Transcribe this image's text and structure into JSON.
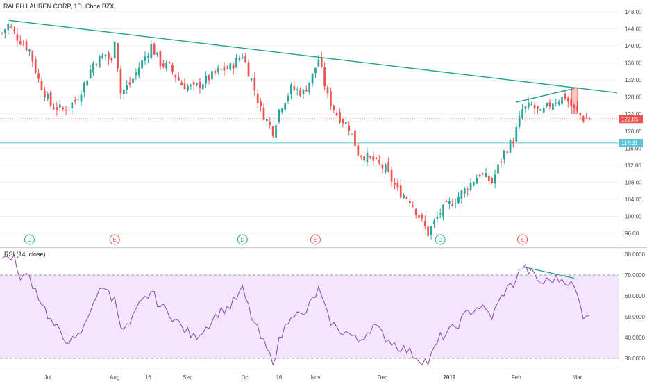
{
  "chart_data": [
    {
      "type": "candlestick",
      "title": "RALPH LAUREN CORP, 1D, Cboe BZX",
      "ylim": [
        94,
        150
      ],
      "y_ticks": [
        "148.00",
        "144.00",
        "140.00",
        "136.00",
        "132.00",
        "128.00",
        "124.00",
        "120.00",
        "116.00",
        "112.00",
        "108.00",
        "104.00",
        "100.00",
        "96.00"
      ],
      "x_ticks": [
        "Jul",
        "Aug",
        "16",
        "Sep",
        "Oct",
        "16",
        "Nov",
        "Dec",
        "2019",
        "Feb",
        "Mar"
      ],
      "last_price": "122.85",
      "horizontal_level": "117.21",
      "trendline": {
        "start": [
          "2018-06-12",
          146.0
        ],
        "end": [
          "2019-03-20",
          129.0
        ]
      },
      "short_trendline": {
        "start": [
          "2019-02-01",
          126.8
        ],
        "end": [
          "2019-02-28",
          130.0
        ]
      },
      "highlight_box": {
        "date": "2019-02-28",
        "high": 130.2,
        "low": 124.2
      },
      "events": [
        {
          "date": "2018-06-22",
          "label": "D"
        },
        {
          "date": "2018-08-01",
          "label": "E"
        },
        {
          "date": "2018-09-28",
          "label": "D"
        },
        {
          "date": "2018-11-01",
          "label": "E"
        },
        {
          "date": "2018-12-28",
          "label": "D"
        },
        {
          "date": "2019-02-05",
          "label": "E"
        }
      ],
      "anchors": [
        [
          "2018-06-11",
          143
        ],
        [
          "2018-06-13",
          145
        ],
        [
          "2018-06-18",
          142
        ],
        [
          "2018-06-22",
          139
        ],
        [
          "2018-06-27",
          132
        ],
        [
          "2018-07-03",
          126
        ],
        [
          "2018-07-09",
          125
        ],
        [
          "2018-07-13",
          127
        ],
        [
          "2018-07-18",
          131
        ],
        [
          "2018-07-23",
          136
        ],
        [
          "2018-07-27",
          138
        ],
        [
          "2018-07-31",
          136
        ],
        [
          "2018-08-01",
          142
        ],
        [
          "2018-08-03",
          129
        ],
        [
          "2018-08-08",
          131
        ],
        [
          "2018-08-13",
          135
        ],
        [
          "2018-08-17",
          140
        ],
        [
          "2018-08-22",
          136
        ],
        [
          "2018-08-27",
          135
        ],
        [
          "2018-08-31",
          131
        ],
        [
          "2018-09-06",
          130
        ],
        [
          "2018-09-12",
          132
        ],
        [
          "2018-09-18",
          134
        ],
        [
          "2018-09-24",
          135
        ],
        [
          "2018-09-28",
          138
        ],
        [
          "2018-10-03",
          132
        ],
        [
          "2018-10-08",
          125
        ],
        [
          "2018-10-12",
          120
        ],
        [
          "2018-10-16",
          125
        ],
        [
          "2018-10-22",
          130
        ],
        [
          "2018-10-26",
          129
        ],
        [
          "2018-10-31",
          133
        ],
        [
          "2018-11-02",
          137
        ],
        [
          "2018-11-07",
          128
        ],
        [
          "2018-11-12",
          124
        ],
        [
          "2018-11-16",
          121
        ],
        [
          "2018-11-21",
          115
        ],
        [
          "2018-11-28",
          113
        ],
        [
          "2018-12-04",
          111
        ],
        [
          "2018-12-10",
          106
        ],
        [
          "2018-12-14",
          104
        ],
        [
          "2018-12-19",
          100
        ],
        [
          "2018-12-24",
          96
        ],
        [
          "2018-12-28",
          101
        ],
        [
          "2019-01-04",
          104
        ],
        [
          "2019-01-10",
          107
        ],
        [
          "2019-01-16",
          110
        ],
        [
          "2019-01-22",
          108
        ],
        [
          "2019-01-28",
          115
        ],
        [
          "2019-01-31",
          118
        ],
        [
          "2019-02-05",
          125
        ],
        [
          "2019-02-08",
          126
        ],
        [
          "2019-02-13",
          124
        ],
        [
          "2019-02-19",
          127
        ],
        [
          "2019-02-25",
          128
        ],
        [
          "2019-02-28",
          125
        ],
        [
          "2019-03-05",
          123
        ],
        [
          "2019-03-07",
          122.85
        ]
      ]
    },
    {
      "type": "line",
      "title": "RSI (14, close)",
      "ylim": [
        26,
        82
      ],
      "y_ticks": [
        "80.0000",
        "70.0000",
        "60.0000",
        "50.0000",
        "40.0000",
        "30.0000"
      ],
      "band": [
        30,
        70
      ],
      "divergence_line": {
        "start": [
          "2019-02-05",
          74
        ],
        "end": [
          "2019-02-28",
          68.5
        ]
      },
      "anchors": [
        [
          "2018-06-11",
          78
        ],
        [
          "2018-06-15",
          79
        ],
        [
          "2018-06-18",
          70
        ],
        [
          "2018-06-22",
          69
        ],
        [
          "2018-06-27",
          60
        ],
        [
          "2018-07-03",
          48
        ],
        [
          "2018-07-09",
          40
        ],
        [
          "2018-07-13",
          38
        ],
        [
          "2018-07-18",
          45
        ],
        [
          "2018-07-23",
          58
        ],
        [
          "2018-07-27",
          65
        ],
        [
          "2018-07-31",
          58
        ],
        [
          "2018-08-01",
          62
        ],
        [
          "2018-08-03",
          43
        ],
        [
          "2018-08-08",
          46
        ],
        [
          "2018-08-13",
          55
        ],
        [
          "2018-08-17",
          62
        ],
        [
          "2018-08-22",
          55
        ],
        [
          "2018-08-27",
          52
        ],
        [
          "2018-08-31",
          45
        ],
        [
          "2018-09-06",
          40
        ],
        [
          "2018-09-12",
          45
        ],
        [
          "2018-09-18",
          52
        ],
        [
          "2018-09-24",
          55
        ],
        [
          "2018-09-28",
          63
        ],
        [
          "2018-10-03",
          50
        ],
        [
          "2018-10-08",
          40
        ],
        [
          "2018-10-12",
          28
        ],
        [
          "2018-10-16",
          38
        ],
        [
          "2018-10-22",
          52
        ],
        [
          "2018-10-26",
          50
        ],
        [
          "2018-10-31",
          58
        ],
        [
          "2018-11-02",
          63
        ],
        [
          "2018-11-07",
          50
        ],
        [
          "2018-11-12",
          44
        ],
        [
          "2018-11-16",
          42
        ],
        [
          "2018-11-21",
          38
        ],
        [
          "2018-11-28",
          46
        ],
        [
          "2018-12-04",
          40
        ],
        [
          "2018-12-10",
          36
        ],
        [
          "2018-12-14",
          33
        ],
        [
          "2018-12-19",
          30
        ],
        [
          "2018-12-24",
          28
        ],
        [
          "2018-12-28",
          40
        ],
        [
          "2019-01-04",
          45
        ],
        [
          "2019-01-10",
          52
        ],
        [
          "2019-01-16",
          55
        ],
        [
          "2019-01-22",
          50
        ],
        [
          "2019-01-28",
          62
        ],
        [
          "2019-01-31",
          66
        ],
        [
          "2019-02-05",
          74
        ],
        [
          "2019-02-08",
          71
        ],
        [
          "2019-02-13",
          66
        ],
        [
          "2019-02-19",
          68
        ],
        [
          "2019-02-25",
          68
        ],
        [
          "2019-02-28",
          64
        ],
        [
          "2019-03-05",
          51
        ],
        [
          "2019-03-07",
          52
        ]
      ]
    }
  ],
  "colors": {
    "up": "#26a69a",
    "down": "#ef5350",
    "trendline": "#1f9f8f",
    "rsi_line": "#8e44ad",
    "rsi_band": "#f3e5fd",
    "last_price": "#ef5350",
    "level": "#5fc5d8"
  }
}
